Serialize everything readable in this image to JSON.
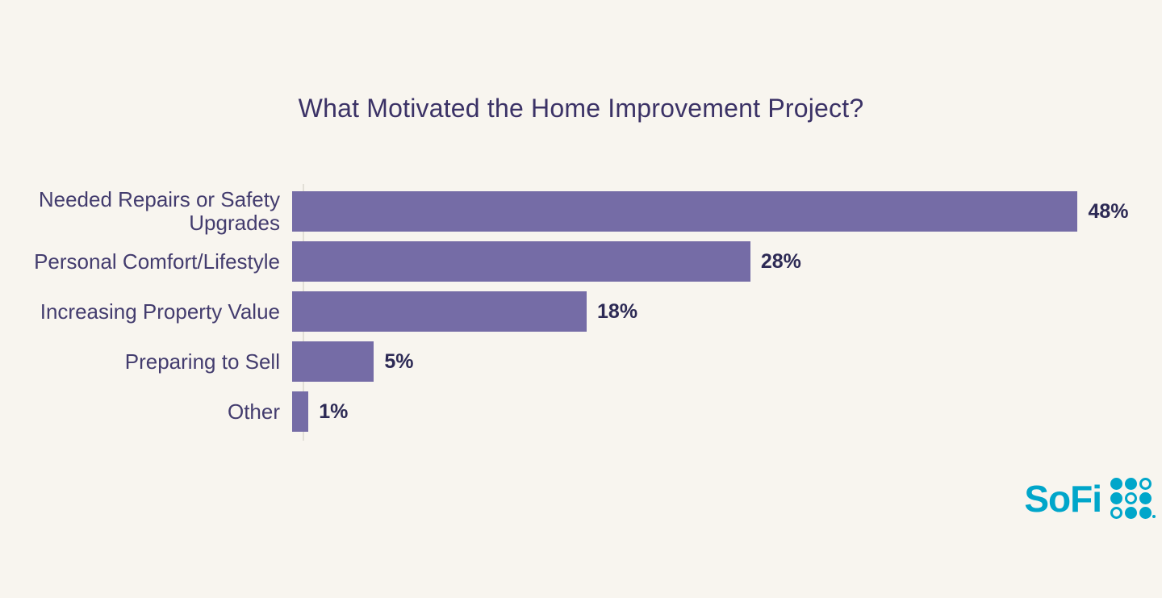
{
  "page": {
    "background": "#f8f5ef"
  },
  "chart_data": {
    "type": "bar",
    "orientation": "horizontal",
    "title": "What Motivated the Home Improvement Project?",
    "categories": [
      "Needed Repairs or Safety Upgrades",
      "Personal Comfort/Lifestyle",
      "Increasing Property Value",
      "Preparing to Sell",
      "Other"
    ],
    "values": [
      48,
      28,
      18,
      5,
      1
    ],
    "value_labels": [
      "48%",
      "28%",
      "18%",
      "5%",
      "1%"
    ],
    "xlabel": "",
    "ylabel": "",
    "xlim": [
      0,
      48
    ],
    "grid": false,
    "legend": false,
    "bar_color": "#756ca6",
    "category_label_color": "#433c6e",
    "value_label_color": "#2d2a55",
    "title_color": "#3b3266",
    "axis_line_color": "#e2dfd7"
  },
  "branding": {
    "logo_text": "SoFi",
    "logo_color": "#00a6ca",
    "logo_dots_icon": "sofi-dot-grid",
    "dot_pattern": [
      "filled",
      "filled",
      "outlined",
      "filled",
      "outlined",
      "filled",
      "outlined",
      "filled",
      "filled"
    ]
  }
}
